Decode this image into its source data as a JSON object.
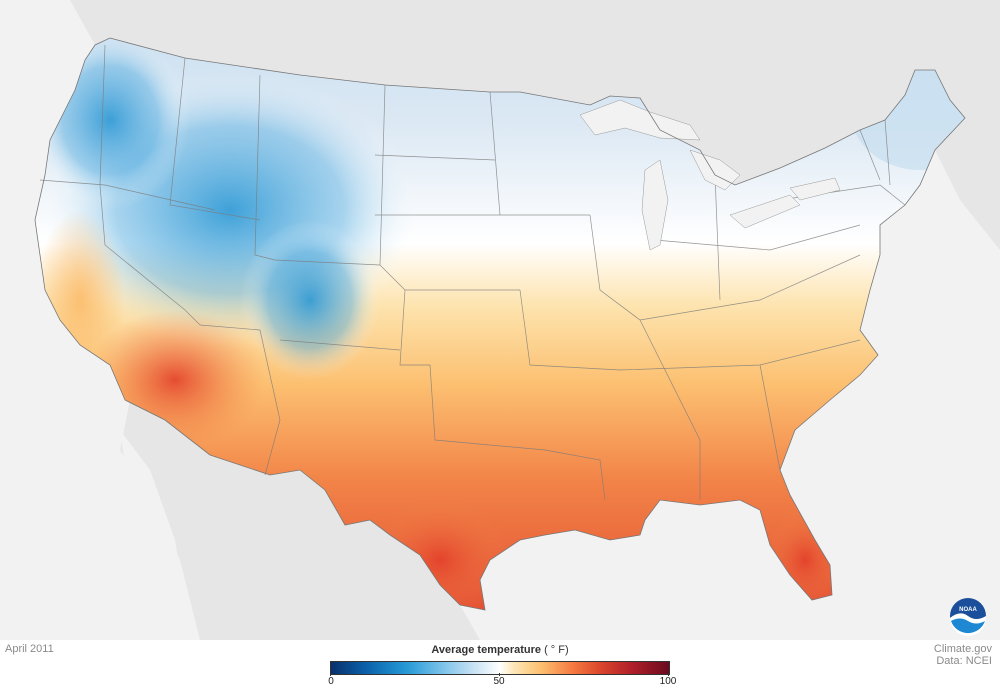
{
  "map": {
    "date": "April 2011",
    "legend": {
      "title": "Average temperature",
      "unit": "( ° F)",
      "ticks": [
        "0",
        "50",
        "100"
      ],
      "range": [
        0,
        100
      ],
      "colors": {
        "cold": "#08306b",
        "cool": "#2b9cd8",
        "neutral": "#ffffff",
        "warm": "#fdc070",
        "hot": "#d9452b",
        "hottest": "#6b0a1f"
      }
    },
    "credits": {
      "source": "Climate.gov",
      "data": "Data: NCEI"
    },
    "logo": {
      "icon": "noaa-logo-icon",
      "text": "NOAA"
    }
  }
}
